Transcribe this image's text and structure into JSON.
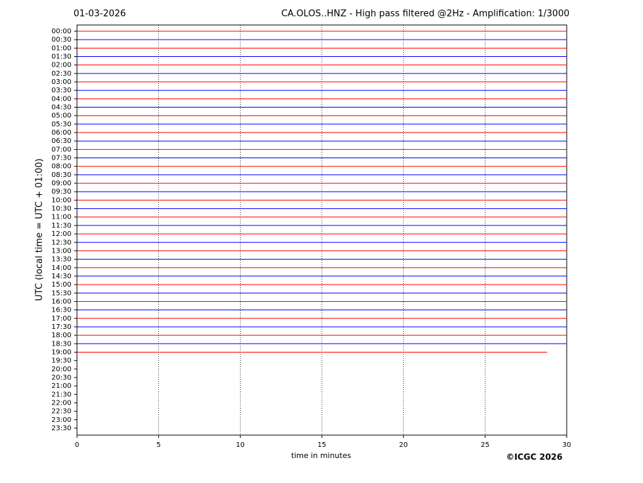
{
  "chart_data": {
    "type": "helicorder",
    "title_left": "01-03-2026",
    "title": "CA.OLOS..HNZ - High pass filtered @2Hz - Amplification: 1/3000",
    "x_label": "time in minutes",
    "y_label": "UTC (local time = UTC + 01:00)",
    "credit": "©ICGC 2026",
    "categories": [
      "00:00",
      "00:30",
      "01:00",
      "01:30",
      "02:00",
      "02:30",
      "03:00",
      "03:30",
      "04:00",
      "04:30",
      "05:00",
      "05:30",
      "06:00",
      "06:30",
      "07:00",
      "07:30",
      "08:00",
      "08:30",
      "09:00",
      "09:30",
      "10:00",
      "10:30",
      "11:00",
      "11:30",
      "12:00",
      "12:30",
      "13:00",
      "13:30",
      "14:00",
      "14:30",
      "15:00",
      "15:30",
      "16:00",
      "16:30",
      "17:00",
      "17:30",
      "18:00",
      "18:30",
      "19:00",
      "19:30",
      "20:00",
      "20:30",
      "21:00",
      "21:30",
      "22:00",
      "22:30",
      "23:00",
      "23:30"
    ],
    "values": [
      30,
      30,
      30,
      30,
      30,
      30,
      30,
      30,
      30,
      30,
      30,
      30,
      30,
      30,
      30,
      30,
      30,
      30,
      30,
      30,
      30,
      30,
      30,
      30,
      30,
      30,
      30,
      30,
      30,
      30,
      30,
      30,
      30,
      30,
      30,
      30,
      30,
      30,
      28.8,
      null,
      null,
      null,
      null,
      null,
      null,
      null,
      null,
      null
    ],
    "colors": [
      "#ff0000",
      "#0000ff"
    ],
    "xlim": [
      0,
      30
    ],
    "xticks": [
      0,
      5,
      10,
      15,
      20,
      25,
      30
    ],
    "grid": true
  }
}
